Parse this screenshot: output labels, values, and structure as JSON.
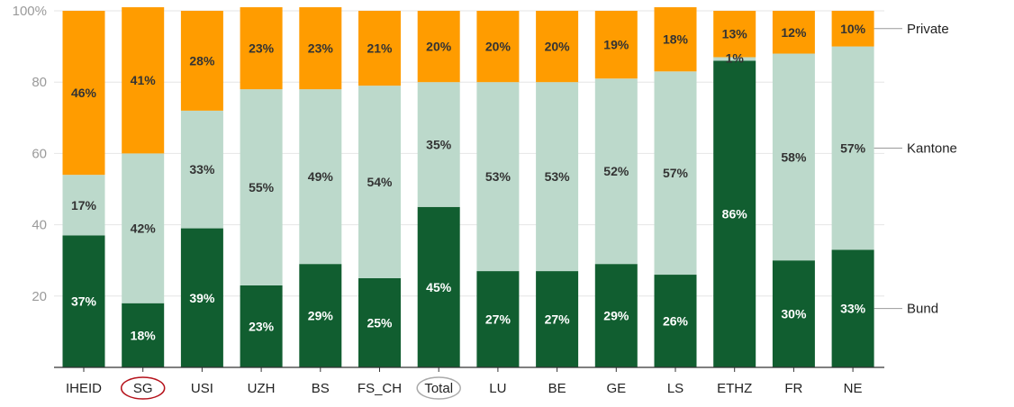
{
  "chart_data": {
    "type": "bar",
    "stacked": true,
    "title": "",
    "xlabel": "",
    "ylabel": "",
    "ylim": [
      0,
      100
    ],
    "yticks": [
      {
        "value": 20,
        "label": "20"
      },
      {
        "value": 40,
        "label": "40"
      },
      {
        "value": 60,
        "label": "60"
      },
      {
        "value": 80,
        "label": "80"
      },
      {
        "value": 100,
        "label": "100%"
      }
    ],
    "grid": true,
    "legend_position": "right",
    "categories": [
      "IHEID",
      "SG",
      "USI",
      "UZH",
      "BS",
      "FS_CH",
      "Total",
      "LU",
      "BE",
      "GE",
      "LS",
      "ETHZ",
      "FR",
      "NE"
    ],
    "highlights": [
      {
        "category": "SG",
        "style": "red-ellipse"
      },
      {
        "category": "Total",
        "style": "gray-ellipse"
      }
    ],
    "series": [
      {
        "name": "Bund",
        "color": "#115e30",
        "label_color": "#ffffff",
        "values": [
          37,
          18,
          39,
          23,
          29,
          25,
          45,
          27,
          27,
          29,
          26,
          86,
          30,
          33
        ],
        "labels": [
          "37%",
          "18%",
          "39%",
          "23%",
          "29%",
          "25%",
          "45%",
          "27%",
          "27%",
          "29%",
          "26%",
          "86%",
          "30%",
          "33%"
        ]
      },
      {
        "name": "Kantone",
        "color": "#bcd9cb",
        "label_color": "#333333",
        "values": [
          17,
          42,
          33,
          55,
          49,
          54,
          35,
          53,
          53,
          52,
          57,
          1,
          58,
          57
        ],
        "labels": [
          "17%",
          "42%",
          "33%",
          "55%",
          "49%",
          "54%",
          "35%",
          "53%",
          "53%",
          "52%",
          "57%",
          "1%",
          "58%",
          "57%"
        ]
      },
      {
        "name": "Private",
        "color": "#ff9c00",
        "label_color": "#333333",
        "values": [
          46,
          41,
          28,
          23,
          23,
          21,
          20,
          20,
          20,
          19,
          18,
          13,
          12,
          10
        ],
        "labels": [
          "46%",
          "41%",
          "28%",
          "23%",
          "23%",
          "21%",
          "20%",
          "20%",
          "20%",
          "19%",
          "18%",
          "13%",
          "12%",
          "10%"
        ]
      }
    ]
  }
}
